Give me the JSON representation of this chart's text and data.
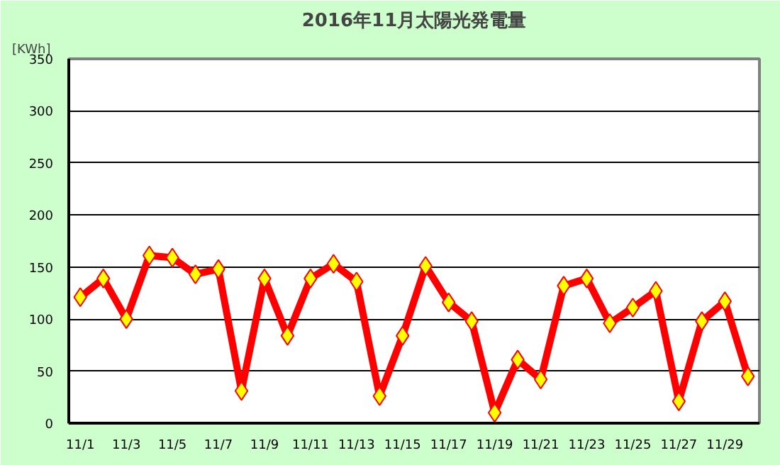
{
  "chart_data": {
    "type": "line",
    "title": "2016年11月太陽光発電量",
    "ylabel": "[KWh]",
    "categories": [
      "11/1",
      null,
      "11/3",
      null,
      "11/5",
      null,
      "11/7",
      null,
      "11/9",
      null,
      "11/11",
      null,
      "11/13",
      null,
      "11/15",
      null,
      "11/17",
      null,
      "11/19",
      null,
      "11/21",
      null,
      "11/23",
      null,
      "11/25",
      null,
      "11/27",
      null,
      "11/29",
      null
    ],
    "series": [
      {
        "color": "#ff0000",
        "values": [
          121,
          139,
          100,
          161,
          159,
          143,
          148,
          31,
          139,
          84,
          139,
          153,
          136,
          26,
          84,
          151,
          116,
          98,
          10,
          61,
          42,
          132,
          139,
          96,
          111,
          127,
          21,
          98,
          117,
          45
        ]
      }
    ],
    "ylim": [
      0,
      350
    ],
    "yticks": [
      0,
      50,
      100,
      150,
      200,
      250,
      300,
      350
    ],
    "grid": "y",
    "marker": "diamond",
    "line_style": "solid"
  }
}
